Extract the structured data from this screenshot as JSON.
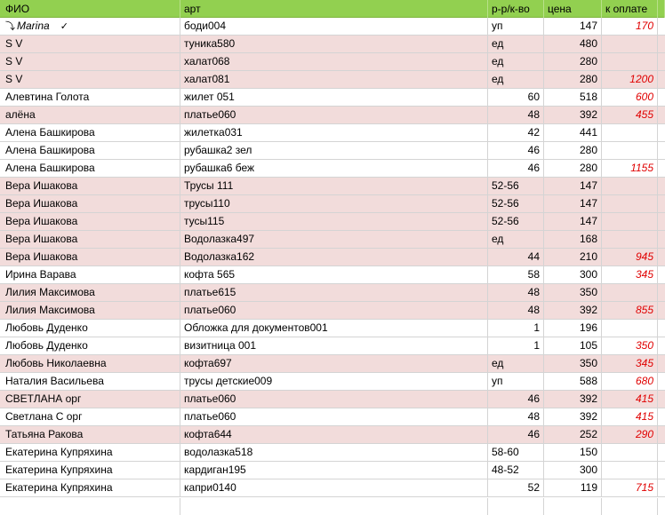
{
  "columns": {
    "fio": "ФИО",
    "art": "арт",
    "size": "р-р/к-во",
    "price": "цена",
    "pay": "к оплате"
  },
  "rows": [
    {
      "fio": "Marina",
      "art": "боди004",
      "size": "уп",
      "price": "147",
      "pay": "170",
      "style": "white",
      "size_num": false
    },
    {
      "fio": "S V",
      "art": "туника580",
      "size": "ед",
      "price": "480",
      "pay": "",
      "style": "pink",
      "size_num": false
    },
    {
      "fio": "S V",
      "art": "халат068",
      "size": "ед",
      "price": "280",
      "pay": "",
      "style": "pink",
      "size_num": false
    },
    {
      "fio": "S V",
      "art": "халат081",
      "size": "ед",
      "price": "280",
      "pay": "1200",
      "style": "pink",
      "size_num": false
    },
    {
      "fio": "Алевтина Голота",
      "art": "жилет 051",
      "size": "60",
      "price": "518",
      "pay": "600",
      "style": "white",
      "size_num": true
    },
    {
      "fio": "алёна",
      "art": "платье060",
      "size": "48",
      "price": "392",
      "pay": "455",
      "style": "pink",
      "size_num": true
    },
    {
      "fio": "Алена Башкирова",
      "art": "жилетка031",
      "size": "42",
      "price": "441",
      "pay": "",
      "style": "white",
      "size_num": true
    },
    {
      "fio": "Алена Башкирова",
      "art": "рубашка2 зел",
      "size": "46",
      "price": "280",
      "pay": "",
      "style": "white",
      "size_num": true
    },
    {
      "fio": "Алена Башкирова",
      "art": "рубашка6 беж",
      "size": "46",
      "price": "280",
      "pay": "1155",
      "style": "white",
      "size_num": true
    },
    {
      "fio": "Вера Ишакова",
      "art": "Трусы 111",
      "size": "52-56",
      "price": "147",
      "pay": "",
      "style": "pink",
      "size_num": false
    },
    {
      "fio": "Вера Ишакова",
      "art": "трусы110",
      "size": "52-56",
      "price": "147",
      "pay": "",
      "style": "pink",
      "size_num": false
    },
    {
      "fio": "Вера Ишакова",
      "art": "тусы115",
      "size": "52-56",
      "price": "147",
      "pay": "",
      "style": "pink",
      "size_num": false
    },
    {
      "fio": "Вера Ишакова",
      "art": "Водолазка497",
      "size": "ед",
      "price": "168",
      "pay": "",
      "style": "pink",
      "size_num": false
    },
    {
      "fio": "Вера Ишакова",
      "art": "Водолазка162",
      "size": "44",
      "price": "210",
      "pay": "945",
      "style": "pink",
      "size_num": true
    },
    {
      "fio": "Ирина Варава",
      "art": "кофта 565",
      "size": "58",
      "price": "300",
      "pay": "345",
      "style": "white",
      "size_num": true
    },
    {
      "fio": "Лилия Максимова",
      "art": "платье615",
      "size": "48",
      "price": "350",
      "pay": "",
      "style": "pink",
      "size_num": true
    },
    {
      "fio": "Лилия Максимова",
      "art": "платье060",
      "size": "48",
      "price": "392",
      "pay": "855",
      "style": "pink",
      "size_num": true
    },
    {
      "fio": "Любовь Дуденко",
      "art": "Обложка для документов001",
      "size": "1",
      "price": "196",
      "pay": "",
      "style": "white",
      "size_num": true
    },
    {
      "fio": "Любовь Дуденко",
      "art": "визитница 001",
      "size": "1",
      "price": "105",
      "pay": "350",
      "style": "white",
      "size_num": true
    },
    {
      "fio": "Любовь Николаевна",
      "art": "кофта697",
      "size": "ед",
      "price": "350",
      "pay": "345",
      "style": "pink",
      "size_num": false
    },
    {
      "fio": "Наталия Васильева",
      "art": "трусы детские009",
      "size": "уп",
      "price": "588",
      "pay": "680",
      "style": "white",
      "size_num": false
    },
    {
      "fio": "СВЕТЛАНА орг",
      "art": "платье060",
      "size": "46",
      "price": "392",
      "pay": "415",
      "style": "pink",
      "size_num": true
    },
    {
      "fio": "Светлана С орг",
      "art": "платье060",
      "size": "48",
      "price": "392",
      "pay": "415",
      "style": "white",
      "size_num": true
    },
    {
      "fio": "Татьяна Ракова",
      "art": "кофта644",
      "size": "46",
      "price": "252",
      "pay": "290",
      "style": "pink",
      "size_num": true
    },
    {
      "fio": "Екатерина Купряхина",
      "art": "водолазка518",
      "size": "58-60",
      "price": "150",
      "pay": "",
      "style": "white",
      "size_num": false
    },
    {
      "fio": "Екатерина Купряхина",
      "art": "кардиган195",
      "size": "48-52",
      "price": "300",
      "pay": "",
      "style": "white",
      "size_num": false
    },
    {
      "fio": "Екатерина Купряхина",
      "art": "капри0140",
      "size": "52",
      "price": "119",
      "pay": "715",
      "style": "white",
      "size_num": true
    }
  ],
  "colors": {
    "header_bg": "#92d050",
    "pink_row": "#f2dcdb",
    "pay_text": "#e00000"
  }
}
